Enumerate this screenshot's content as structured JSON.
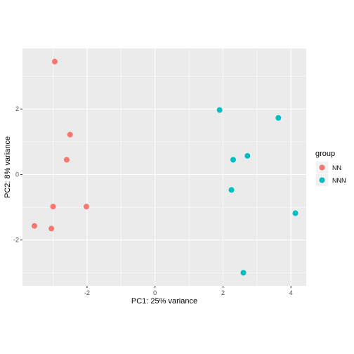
{
  "chart_data": {
    "type": "scatter",
    "xlabel": "PC1: 25% variance",
    "ylabel": "PC2: 8% variance",
    "xlim": [
      -3.9,
      4.45
    ],
    "ylim": [
      -3.4,
      3.85
    ],
    "x_ticks": [
      -2,
      0,
      2,
      4
    ],
    "x_tick_labels": [
      "-2",
      "0",
      "2",
      "4"
    ],
    "y_ticks": [
      -2,
      0,
      2
    ],
    "y_tick_labels": [
      "-2",
      "0",
      "2"
    ],
    "grid": true,
    "legend": {
      "title": "group",
      "placement": "right",
      "entries": [
        {
          "label": "NN",
          "color": "#F8766D"
        },
        {
          "label": "NNN",
          "color": "#00BFC4"
        }
      ]
    },
    "series": [
      {
        "name": "NN",
        "color": "#F8766D",
        "points": [
          {
            "x": -2.95,
            "y": 3.45
          },
          {
            "x": -2.5,
            "y": 1.22
          },
          {
            "x": -2.6,
            "y": 0.45
          },
          {
            "x": -3.0,
            "y": -0.98
          },
          {
            "x": -2.02,
            "y": -0.98
          },
          {
            "x": -3.55,
            "y": -1.57
          },
          {
            "x": -3.05,
            "y": -1.65
          }
        ]
      },
      {
        "name": "NNN",
        "color": "#00BFC4",
        "points": [
          {
            "x": 1.9,
            "y": 1.97
          },
          {
            "x": 3.63,
            "y": 1.73
          },
          {
            "x": 2.72,
            "y": 0.57
          },
          {
            "x": 2.3,
            "y": 0.45
          },
          {
            "x": 2.25,
            "y": -0.47
          },
          {
            "x": 4.13,
            "y": -1.18
          },
          {
            "x": 2.6,
            "y": -3.0
          }
        ]
      }
    ]
  }
}
